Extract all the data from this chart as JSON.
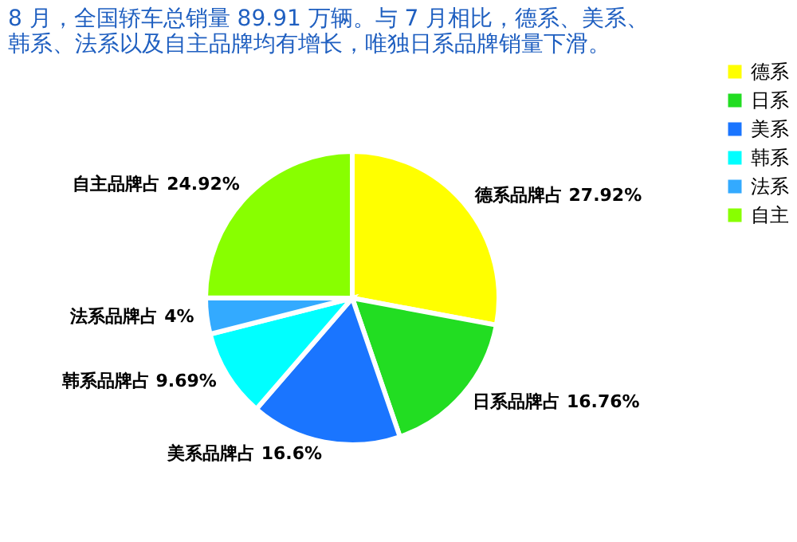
{
  "chart_data": {
    "type": "pie",
    "title": [
      "8 月，全国轿车总销量 89.91 万辆。与 7 月相比，德系、美系、",
      "韩系、法系以及自主品牌均有增长，唯独日系品牌销量下滑。"
    ],
    "categories": [
      "德系",
      "日系",
      "美系",
      "韩系",
      "法系",
      "自主"
    ],
    "values": [
      27.92,
      16.76,
      16.6,
      9.69,
      4,
      24.92
    ],
    "colors": [
      "#ffff00",
      "#22dd22",
      "#1a75ff",
      "#00ffff",
      "#33aaff",
      "#88ff00"
    ],
    "value_labels": [
      "德系品牌占 27.92%",
      "日系品牌占 16.76%",
      "美系品牌占 16.6%",
      "韩系品牌占 9.69%",
      "法系品牌占 4%",
      "自主品牌占 24.92%"
    ],
    "legend": "right"
  }
}
